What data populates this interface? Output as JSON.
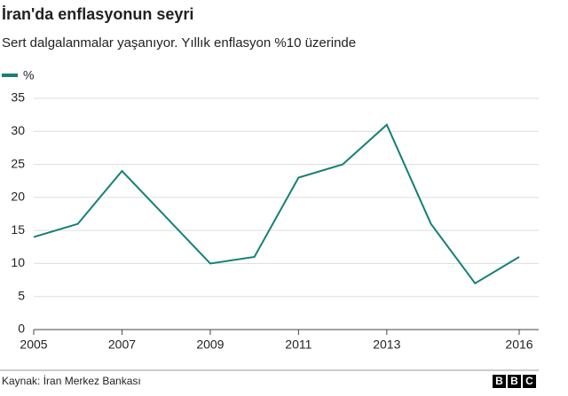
{
  "chart_data": {
    "type": "line",
    "title": "İran'da enflasyonun seyri",
    "subtitle": "Sert dalgalanmalar yaşanıyor. Yıllık enflasyon %10 üzerinde",
    "x": [
      2005,
      2006,
      2007,
      2008,
      2009,
      2010,
      2011,
      2012,
      2013,
      2014,
      2015,
      2016
    ],
    "series": [
      {
        "name": "%",
        "color": "#168076",
        "values": [
          14,
          16,
          24,
          17,
          10,
          11,
          23,
          25,
          31,
          16,
          7,
          11
        ]
      }
    ],
    "xlim": [
      2005,
      2016
    ],
    "xticks": [
      2005,
      2007,
      2009,
      2011,
      2013,
      2016
    ],
    "ylim": [
      0,
      35
    ],
    "yticks": [
      0,
      5,
      10,
      15,
      20,
      25,
      30,
      35
    ],
    "grid": true,
    "source": "Kaynak: İran Merkez Bankası",
    "logo": [
      "B",
      "B",
      "C"
    ]
  }
}
